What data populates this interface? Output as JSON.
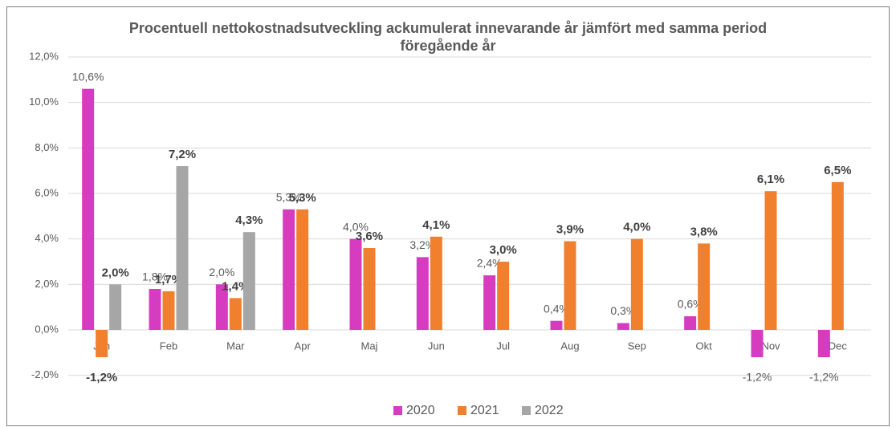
{
  "chart_data": {
    "type": "bar",
    "title": "Procentuell nettokostnadsutveckling ackumulerat innevarande år jämfört med samma period föregående år",
    "categories": [
      "Jan",
      "Feb",
      "Mar",
      "Apr",
      "Maj",
      "Jun",
      "Jul",
      "Aug",
      "Sep",
      "Okt",
      "Nov",
      "Dec"
    ],
    "series": [
      {
        "name": "2020",
        "color": "#d63cbf",
        "values": [
          10.6,
          1.8,
          2.0,
          5.3,
          4.0,
          3.2,
          2.4,
          0.4,
          0.3,
          0.6,
          -1.2,
          -1.2
        ],
        "value_labels": [
          "10,6%",
          "1,8%",
          "2,0%",
          "5,3%",
          "4,0%",
          "3,2%",
          "2,4%",
          "0,4%",
          "0,3%",
          "0,6%",
          "-1,2%",
          "-1,2%"
        ]
      },
      {
        "name": "2021",
        "color": "#f0802e",
        "values": [
          -1.2,
          1.7,
          1.4,
          5.3,
          3.6,
          4.1,
          3.0,
          3.9,
          4.0,
          3.8,
          6.1,
          6.5
        ],
        "value_labels": [
          "-1,2%",
          "1,7%",
          "1,4%",
          "5,3%",
          "3,6%",
          "4,1%",
          "3,0%",
          "3,9%",
          "4,0%",
          "3,8%",
          "6,1%",
          "6,5%"
        ]
      },
      {
        "name": "2022",
        "color": "#a6a6a6",
        "values": [
          2.0,
          7.2,
          4.3,
          null,
          null,
          null,
          null,
          null,
          null,
          null,
          null,
          null
        ],
        "value_labels": [
          "2,0%",
          "7,2%",
          "4,3%",
          null,
          null,
          null,
          null,
          null,
          null,
          null,
          null,
          null
        ]
      }
    ],
    "ylim": [
      -2,
      12
    ],
    "yticks": [
      {
        "value": -2,
        "label": "-2,0%"
      },
      {
        "value": 0,
        "label": "0,0%"
      },
      {
        "value": 2,
        "label": "2,0%"
      },
      {
        "value": 4,
        "label": "4,0%"
      },
      {
        "value": 6,
        "label": "6,0%"
      },
      {
        "value": 8,
        "label": "8,0%"
      },
      {
        "value": 10,
        "label": "10,0%"
      },
      {
        "value": 12,
        "label": "12,0%"
      }
    ],
    "grid": true,
    "legend": "bottom"
  }
}
